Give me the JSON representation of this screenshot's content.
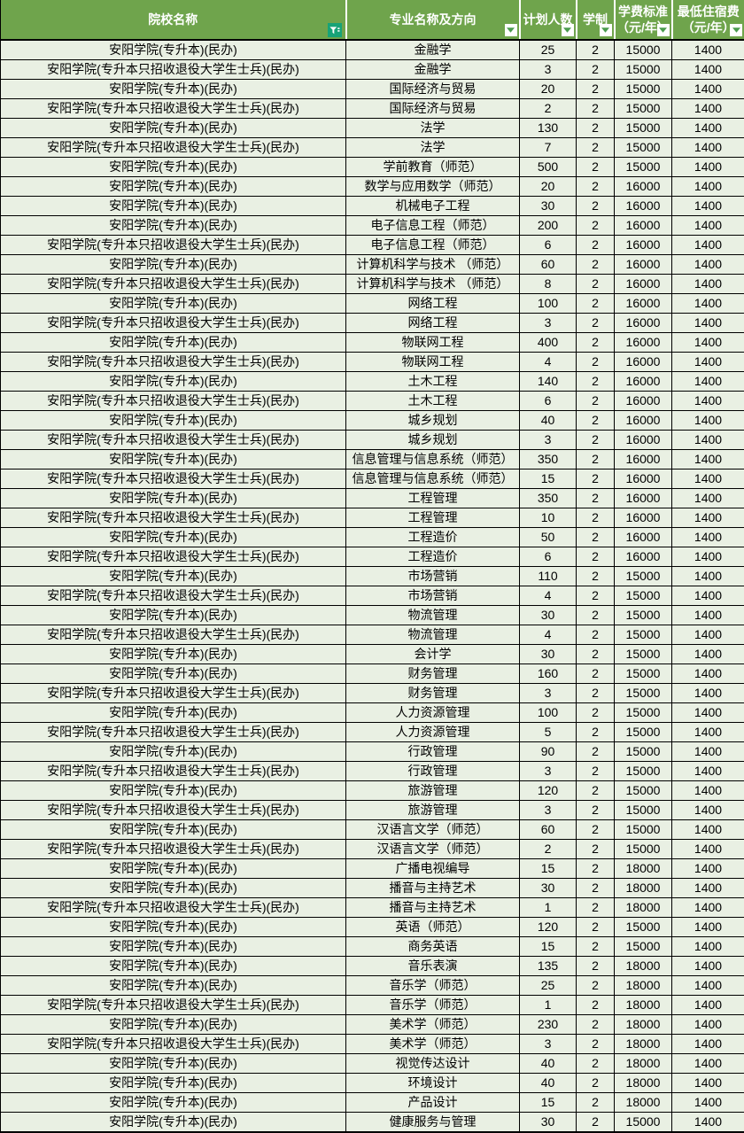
{
  "table": {
    "header": {
      "col_institution": "院校名称",
      "col_major": "专业名称及方向",
      "col_plan": "计划人数",
      "col_duration": "学制",
      "col_tuition_line1": "学费标准",
      "col_tuition_line2": "（元/年）",
      "col_dorm_line1": "最低住宿费",
      "col_dorm_line2": "（元/年）"
    },
    "icons": {
      "institution_filter": "funnel-icon (filter applied)",
      "other_columns_filter": "chevron-down-icon (filter dropdown)"
    },
    "colors": {
      "header_bg": "#6fa44c",
      "header_text": "#ffffff",
      "row_bg": "#e9f0e3",
      "filter_active_bg": "#17a377",
      "dropdown_arrow": "#4a9c4e",
      "border": "#000000",
      "body_text": "#000000"
    },
    "rows": [
      {
        "institution": "安阳学院(专升本)(民办)",
        "major": "金融学",
        "plan": "25",
        "duration": "2",
        "tuition": "15000",
        "dorm": "1400"
      },
      {
        "institution": "安阳学院(专升本只招收退役大学生士兵)(民办)",
        "major": "金融学",
        "plan": "3",
        "duration": "2",
        "tuition": "15000",
        "dorm": "1400"
      },
      {
        "institution": "安阳学院(专升本)(民办)",
        "major": "国际经济与贸易",
        "plan": "20",
        "duration": "2",
        "tuition": "15000",
        "dorm": "1400"
      },
      {
        "institution": "安阳学院(专升本只招收退役大学生士兵)(民办)",
        "major": "国际经济与贸易",
        "plan": "2",
        "duration": "2",
        "tuition": "15000",
        "dorm": "1400"
      },
      {
        "institution": "安阳学院(专升本)(民办)",
        "major": "法学",
        "plan": "130",
        "duration": "2",
        "tuition": "15000",
        "dorm": "1400"
      },
      {
        "institution": "安阳学院(专升本只招收退役大学生士兵)(民办)",
        "major": "法学",
        "plan": "7",
        "duration": "2",
        "tuition": "15000",
        "dorm": "1400"
      },
      {
        "institution": "安阳学院(专升本)(民办)",
        "major": "学前教育（师范）",
        "plan": "500",
        "duration": "2",
        "tuition": "15000",
        "dorm": "1400"
      },
      {
        "institution": "安阳学院(专升本)(民办)",
        "major": "数学与应用数学（师范）",
        "plan": "20",
        "duration": "2",
        "tuition": "16000",
        "dorm": "1400"
      },
      {
        "institution": "安阳学院(专升本)(民办)",
        "major": "机械电子工程",
        "plan": "30",
        "duration": "2",
        "tuition": "16000",
        "dorm": "1400"
      },
      {
        "institution": "安阳学院(专升本)(民办)",
        "major": "电子信息工程（师范）",
        "plan": "200",
        "duration": "2",
        "tuition": "16000",
        "dorm": "1400"
      },
      {
        "institution": "安阳学院(专升本只招收退役大学生士兵)(民办)",
        "major": "电子信息工程（师范）",
        "plan": "6",
        "duration": "2",
        "tuition": "16000",
        "dorm": "1400"
      },
      {
        "institution": "安阳学院(专升本)(民办)",
        "major": "计算机科学与技术 （师范）",
        "plan": "60",
        "duration": "2",
        "tuition": "16000",
        "dorm": "1400"
      },
      {
        "institution": "安阳学院(专升本只招收退役大学生士兵)(民办)",
        "major": "计算机科学与技术 （师范）",
        "plan": "8",
        "duration": "2",
        "tuition": "16000",
        "dorm": "1400"
      },
      {
        "institution": "安阳学院(专升本)(民办)",
        "major": "网络工程",
        "plan": "100",
        "duration": "2",
        "tuition": "16000",
        "dorm": "1400"
      },
      {
        "institution": "安阳学院(专升本只招收退役大学生士兵)(民办)",
        "major": "网络工程",
        "plan": "3",
        "duration": "2",
        "tuition": "16000",
        "dorm": "1400"
      },
      {
        "institution": "安阳学院(专升本)(民办)",
        "major": "物联网工程",
        "plan": "400",
        "duration": "2",
        "tuition": "16000",
        "dorm": "1400"
      },
      {
        "institution": "安阳学院(专升本只招收退役大学生士兵)(民办)",
        "major": "物联网工程",
        "plan": "4",
        "duration": "2",
        "tuition": "16000",
        "dorm": "1400"
      },
      {
        "institution": "安阳学院(专升本)(民办)",
        "major": "土木工程",
        "plan": "140",
        "duration": "2",
        "tuition": "16000",
        "dorm": "1400"
      },
      {
        "institution": "安阳学院(专升本只招收退役大学生士兵)(民办)",
        "major": "土木工程",
        "plan": "6",
        "duration": "2",
        "tuition": "16000",
        "dorm": "1400"
      },
      {
        "institution": "安阳学院(专升本)(民办)",
        "major": "城乡规划",
        "plan": "40",
        "duration": "2",
        "tuition": "16000",
        "dorm": "1400"
      },
      {
        "institution": "安阳学院(专升本只招收退役大学生士兵)(民办)",
        "major": "城乡规划",
        "plan": "3",
        "duration": "2",
        "tuition": "16000",
        "dorm": "1400"
      },
      {
        "institution": "安阳学院(专升本)(民办)",
        "major": "信息管理与信息系统（师范）",
        "plan": "350",
        "duration": "2",
        "tuition": "16000",
        "dorm": "1400"
      },
      {
        "institution": "安阳学院(专升本只招收退役大学生士兵)(民办)",
        "major": "信息管理与信息系统（师范）",
        "plan": "15",
        "duration": "2",
        "tuition": "16000",
        "dorm": "1400"
      },
      {
        "institution": "安阳学院(专升本)(民办)",
        "major": "工程管理",
        "plan": "350",
        "duration": "2",
        "tuition": "16000",
        "dorm": "1400"
      },
      {
        "institution": "安阳学院(专升本只招收退役大学生士兵)(民办)",
        "major": "工程管理",
        "plan": "10",
        "duration": "2",
        "tuition": "16000",
        "dorm": "1400"
      },
      {
        "institution": "安阳学院(专升本)(民办)",
        "major": "工程造价",
        "plan": "50",
        "duration": "2",
        "tuition": "16000",
        "dorm": "1400"
      },
      {
        "institution": "安阳学院(专升本只招收退役大学生士兵)(民办)",
        "major": "工程造价",
        "plan": "6",
        "duration": "2",
        "tuition": "16000",
        "dorm": "1400"
      },
      {
        "institution": "安阳学院(专升本)(民办)",
        "major": "市场营销",
        "plan": "110",
        "duration": "2",
        "tuition": "15000",
        "dorm": "1400"
      },
      {
        "institution": "安阳学院(专升本只招收退役大学生士兵)(民办)",
        "major": "市场营销",
        "plan": "4",
        "duration": "2",
        "tuition": "15000",
        "dorm": "1400"
      },
      {
        "institution": "安阳学院(专升本)(民办)",
        "major": "物流管理",
        "plan": "30",
        "duration": "2",
        "tuition": "15000",
        "dorm": "1400"
      },
      {
        "institution": "安阳学院(专升本只招收退役大学生士兵)(民办)",
        "major": "物流管理",
        "plan": "4",
        "duration": "2",
        "tuition": "15000",
        "dorm": "1400"
      },
      {
        "institution": "安阳学院(专升本)(民办)",
        "major": "会计学",
        "plan": "30",
        "duration": "2",
        "tuition": "15000",
        "dorm": "1400"
      },
      {
        "institution": "安阳学院(专升本)(民办)",
        "major": "财务管理",
        "plan": "160",
        "duration": "2",
        "tuition": "15000",
        "dorm": "1400"
      },
      {
        "institution": "安阳学院(专升本只招收退役大学生士兵)(民办)",
        "major": "财务管理",
        "plan": "3",
        "duration": "2",
        "tuition": "15000",
        "dorm": "1400"
      },
      {
        "institution": "安阳学院(专升本)(民办)",
        "major": "人力资源管理",
        "plan": "100",
        "duration": "2",
        "tuition": "15000",
        "dorm": "1400"
      },
      {
        "institution": "安阳学院(专升本只招收退役大学生士兵)(民办)",
        "major": "人力资源管理",
        "plan": "5",
        "duration": "2",
        "tuition": "15000",
        "dorm": "1400"
      },
      {
        "institution": "安阳学院(专升本)(民办)",
        "major": "行政管理",
        "plan": "90",
        "duration": "2",
        "tuition": "15000",
        "dorm": "1400"
      },
      {
        "institution": "安阳学院(专升本只招收退役大学生士兵)(民办)",
        "major": "行政管理",
        "plan": "3",
        "duration": "2",
        "tuition": "15000",
        "dorm": "1400"
      },
      {
        "institution": "安阳学院(专升本)(民办)",
        "major": "旅游管理",
        "plan": "120",
        "duration": "2",
        "tuition": "15000",
        "dorm": "1400"
      },
      {
        "institution": "安阳学院(专升本只招收退役大学生士兵)(民办)",
        "major": "旅游管理",
        "plan": "3",
        "duration": "2",
        "tuition": "15000",
        "dorm": "1400"
      },
      {
        "institution": "安阳学院(专升本)(民办)",
        "major": "汉语言文学（师范）",
        "plan": "60",
        "duration": "2",
        "tuition": "15000",
        "dorm": "1400"
      },
      {
        "institution": "安阳学院(专升本只招收退役大学生士兵)(民办)",
        "major": "汉语言文学（师范）",
        "plan": "2",
        "duration": "2",
        "tuition": "15000",
        "dorm": "1400"
      },
      {
        "institution": "安阳学院(专升本)(民办)",
        "major": "广播电视编导",
        "plan": "15",
        "duration": "2",
        "tuition": "18000",
        "dorm": "1400"
      },
      {
        "institution": "安阳学院(专升本)(民办)",
        "major": "播音与主持艺术",
        "plan": "30",
        "duration": "2",
        "tuition": "18000",
        "dorm": "1400"
      },
      {
        "institution": "安阳学院(专升本只招收退役大学生士兵)(民办)",
        "major": "播音与主持艺术",
        "plan": "1",
        "duration": "2",
        "tuition": "18000",
        "dorm": "1400"
      },
      {
        "institution": "安阳学院(专升本)(民办)",
        "major": "英语（师范）",
        "plan": "120",
        "duration": "2",
        "tuition": "15000",
        "dorm": "1400"
      },
      {
        "institution": "安阳学院(专升本)(民办)",
        "major": "商务英语",
        "plan": "15",
        "duration": "2",
        "tuition": "15000",
        "dorm": "1400"
      },
      {
        "institution": "安阳学院(专升本)(民办)",
        "major": "音乐表演",
        "plan": "135",
        "duration": "2",
        "tuition": "18000",
        "dorm": "1400"
      },
      {
        "institution": "安阳学院(专升本)(民办)",
        "major": "音乐学（师范）",
        "plan": "25",
        "duration": "2",
        "tuition": "18000",
        "dorm": "1400"
      },
      {
        "institution": "安阳学院(专升本只招收退役大学生士兵)(民办)",
        "major": "音乐学（师范）",
        "plan": "1",
        "duration": "2",
        "tuition": "18000",
        "dorm": "1400"
      },
      {
        "institution": "安阳学院(专升本)(民办)",
        "major": "美术学（师范）",
        "plan": "230",
        "duration": "2",
        "tuition": "18000",
        "dorm": "1400"
      },
      {
        "institution": "安阳学院(专升本只招收退役大学生士兵)(民办)",
        "major": "美术学（师范）",
        "plan": "3",
        "duration": "2",
        "tuition": "18000",
        "dorm": "1400"
      },
      {
        "institution": "安阳学院(专升本)(民办)",
        "major": "视觉传达设计",
        "plan": "40",
        "duration": "2",
        "tuition": "18000",
        "dorm": "1400"
      },
      {
        "institution": "安阳学院(专升本)(民办)",
        "major": "环境设计",
        "plan": "40",
        "duration": "2",
        "tuition": "18000",
        "dorm": "1400"
      },
      {
        "institution": "安阳学院(专升本)(民办)",
        "major": "产品设计",
        "plan": "15",
        "duration": "2",
        "tuition": "18000",
        "dorm": "1400"
      },
      {
        "institution": "安阳学院(专升本)(民办)",
        "major": "健康服务与管理",
        "plan": "30",
        "duration": "2",
        "tuition": "15000",
        "dorm": "1400"
      }
    ]
  }
}
